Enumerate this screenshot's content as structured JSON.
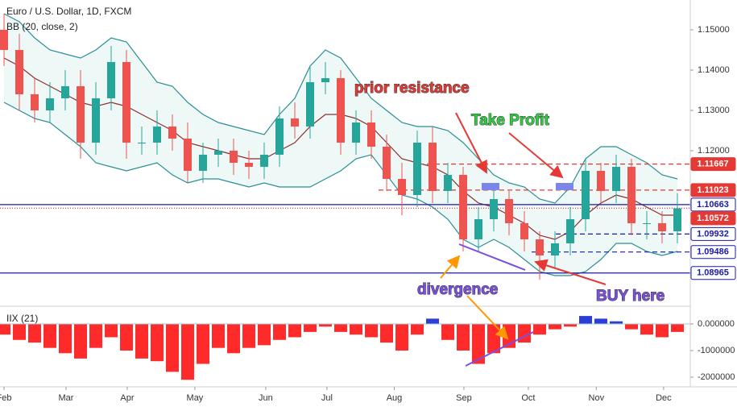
{
  "chart_data": {
    "type": "candlestick",
    "title": "Euro / U.S. Dollar, 1D, FXCM",
    "indicator": "BB (20, close, 2)",
    "ylim": [
      1.0814,
      1.1574
    ],
    "yticks": [
      {
        "value": 1.12,
        "label": "1.12000"
      },
      {
        "value": 1.13,
        "label": "1.13000"
      },
      {
        "value": 1.14,
        "label": "1.14000"
      },
      {
        "value": 1.15,
        "label": "1.15000"
      }
    ],
    "xlim": [
      -0.263,
      44.737
    ],
    "xticks": [
      {
        "value": 0,
        "label": "Feb"
      },
      {
        "value": 4.05,
        "label": "Mar"
      },
      {
        "value": 8.05,
        "label": "Apr"
      },
      {
        "value": 12.47,
        "label": "May"
      },
      {
        "value": 17.1,
        "label": "Jun"
      },
      {
        "value": 21.1,
        "label": "Jul"
      },
      {
        "value": 25.5,
        "label": "Aug"
      },
      {
        "value": 30.05,
        "label": "Sep"
      },
      {
        "value": 34.26,
        "label": "Oct"
      },
      {
        "value": 38.7,
        "label": "Nov"
      },
      {
        "value": 43.1,
        "label": "Dec"
      }
    ],
    "up_color": "#26a69a",
    "down_color": "#ef5350",
    "open": [
      1.15,
      1.145,
      1.134,
      1.13,
      1.133,
      1.136,
      1.122,
      1.133,
      1.142,
      1.122,
      1.122,
      1.126,
      1.123,
      1.115,
      1.119,
      1.12,
      1.117,
      1.116,
      1.119,
      1.128,
      1.126,
      1.137,
      1.138,
      1.122,
      1.127,
      1.121,
      1.113,
      1.109,
      1.122,
      1.11,
      1.114,
      1.098,
      1.103,
      1.108,
      1.102,
      1.098,
      1.094,
      1.097,
      1.103,
      1.115,
      1.11,
      1.116,
      1.102,
      1.102,
      1.1
    ],
    "high": [
      1.154,
      1.149,
      1.138,
      1.137,
      1.14,
      1.14,
      1.137,
      1.146,
      1.145,
      1.126,
      1.13,
      1.129,
      1.127,
      1.122,
      1.123,
      1.123,
      1.12,
      1.122,
      1.131,
      1.132,
      1.141,
      1.142,
      1.14,
      1.13,
      1.13,
      1.124,
      1.117,
      1.125,
      1.126,
      1.117,
      1.116,
      1.106,
      1.111,
      1.11,
      1.105,
      1.1,
      1.1,
      1.106,
      1.118,
      1.117,
      1.119,
      1.118,
      1.105,
      1.105,
      1.1095
    ],
    "low": [
      1.141,
      1.13,
      1.127,
      1.127,
      1.13,
      1.118,
      1.119,
      1.13,
      1.118,
      1.119,
      1.119,
      1.12,
      1.112,
      1.112,
      1.116,
      1.114,
      1.113,
      1.113,
      1.116,
      1.123,
      1.123,
      1.134,
      1.119,
      1.119,
      1.118,
      1.11,
      1.104,
      1.106,
      1.107,
      1.107,
      1.095,
      1.095,
      1.1,
      1.099,
      1.095,
      1.088,
      1.091,
      1.094,
      1.1,
      1.107,
      1.107,
      1.099,
      1.098,
      1.097,
      1.097
    ],
    "close": [
      1.145,
      1.134,
      1.13,
      1.133,
      1.136,
      1.122,
      1.133,
      1.142,
      1.122,
      1.122,
      1.126,
      1.123,
      1.115,
      1.119,
      1.12,
      1.117,
      1.116,
      1.119,
      1.128,
      1.126,
      1.137,
      1.138,
      1.122,
      1.127,
      1.121,
      1.113,
      1.109,
      1.122,
      1.11,
      1.114,
      1.098,
      1.103,
      1.108,
      1.102,
      1.098,
      1.094,
      1.097,
      1.103,
      1.115,
      1.11,
      1.116,
      1.102,
      1.102,
      1.1,
      1.1057
    ],
    "bb_upper": [
      1.154,
      1.152,
      1.148,
      1.145,
      1.144,
      1.143,
      1.145,
      1.148,
      1.147,
      1.142,
      1.137,
      1.136,
      1.132,
      1.129,
      1.127,
      1.126,
      1.125,
      1.124,
      1.129,
      1.133,
      1.141,
      1.145,
      1.143,
      1.138,
      1.133,
      1.13,
      1.127,
      1.126,
      1.126,
      1.125,
      1.122,
      1.118,
      1.114,
      1.112,
      1.111,
      1.108,
      1.107,
      1.111,
      1.118,
      1.121,
      1.121,
      1.119,
      1.117,
      1.114,
      1.113
    ],
    "bb_middle": [
      1.143,
      1.141,
      1.138,
      1.136,
      1.134,
      1.132,
      1.131,
      1.132,
      1.131,
      1.129,
      1.127,
      1.125,
      1.122,
      1.121,
      1.12,
      1.119,
      1.118,
      1.118,
      1.12,
      1.122,
      1.126,
      1.129,
      1.129,
      1.128,
      1.126,
      1.122,
      1.118,
      1.117,
      1.116,
      1.114,
      1.11,
      1.107,
      1.106,
      1.104,
      1.102,
      1.099,
      1.098,
      1.1,
      1.104,
      1.107,
      1.109,
      1.108,
      1.106,
      1.104,
      1.104
    ],
    "bb_lower": [
      1.132,
      1.13,
      1.128,
      1.127,
      1.124,
      1.121,
      1.117,
      1.116,
      1.115,
      1.116,
      1.117,
      1.114,
      1.112,
      1.113,
      1.113,
      1.112,
      1.111,
      1.112,
      1.111,
      1.111,
      1.111,
      1.113,
      1.115,
      1.118,
      1.119,
      1.114,
      1.109,
      1.108,
      1.106,
      1.103,
      1.098,
      1.096,
      1.098,
      1.096,
      1.093,
      1.09,
      1.089,
      1.089,
      1.09,
      1.093,
      1.097,
      1.097,
      1.095,
      1.094,
      1.095
    ],
    "levels": [
      {
        "value": 1.11667,
        "color": "#e53935",
        "dash": "6 4",
        "box": "filled"
      },
      {
        "value": 1.11023,
        "color": "#e53935",
        "dash": "6 4",
        "box": "filled"
      },
      {
        "value": 1.10663,
        "color": "#1a1aa6",
        "dash": "none",
        "box": "outline"
      },
      {
        "value": 1.10572,
        "color": "#e53935",
        "dash": "1 2",
        "box": "filled"
      },
      {
        "value": 1.09932,
        "color": "#1a1aa6",
        "dash": "6 4",
        "box": "outline"
      },
      {
        "value": 1.09486,
        "color": "#1a1aa6",
        "dash": "6 4",
        "box": "outline"
      },
      {
        "value": 1.08965,
        "color": "#1a1aa6",
        "dash": "none",
        "box": "outline"
      }
    ],
    "annotations": [
      {
        "text": "prior resistance",
        "color": "#e53935"
      },
      {
        "text": "Take Profit",
        "color": "#2ecc40"
      },
      {
        "text": "divergence",
        "color": "#7b4fe0"
      },
      {
        "text": "BUY here",
        "color": "#7b4fe0"
      }
    ],
    "iix": {
      "name": "IIX (21)",
      "ylim": [
        -2364000,
        606000
      ],
      "yticks": [
        {
          "value": 0,
          "label": "0.000000"
        },
        -1000000,
        -2000000
      ],
      "positive_color": "#2b3fd6",
      "negative_color": "#ff2a2a",
      "values": [
        -400000,
        -600000,
        -700000,
        -900000,
        -1100000,
        -1300000,
        -900000,
        -500000,
        -1000000,
        -1300000,
        -1400000,
        -1800000,
        -2100000,
        -1500000,
        -900000,
        -1100000,
        -900000,
        -800000,
        -600000,
        -500000,
        -300000,
        -100000,
        -300000,
        -400000,
        -500000,
        -700000,
        -1000000,
        -400000,
        200000,
        -600000,
        -1000000,
        -1500000,
        -1100000,
        -900000,
        -700000,
        -400000,
        -200000,
        -100000,
        300000,
        200000,
        100000,
        -200000,
        -400000,
        -500000,
        -300000
      ]
    }
  }
}
